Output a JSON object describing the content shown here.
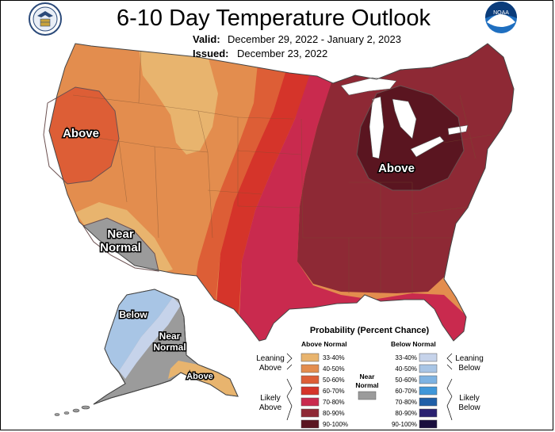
{
  "header": {
    "title": "6-10 Day Temperature Outlook",
    "valid_label": "Valid:",
    "valid_value": "December 29, 2022 - January 2, 2023",
    "issued_label": "Issued:",
    "issued_value": "December 23, 2022"
  },
  "logos": {
    "left": "department-of-commerce-seal",
    "right": "noaa-logo",
    "right_text": "NOAA"
  },
  "map_labels": {
    "west_above": "Above",
    "southwest_near_1": "Near",
    "southwest_near_2": "Normal",
    "east_above": "Above",
    "alaska_below": "Below",
    "alaska_near_1": "Near",
    "alaska_near_2": "Normal",
    "alaska_above": "Above"
  },
  "legend": {
    "title": "Probability (Percent Chance)",
    "above_header": "Above Normal",
    "below_header": "Below Normal",
    "near_label_1": "Near",
    "near_label_2": "Normal",
    "leaning_above_1": "Leaning",
    "leaning_above_2": "Above",
    "likely_above_1": "Likely",
    "likely_above_2": "Above",
    "leaning_below_1": "Leaning",
    "leaning_below_2": "Below",
    "likely_below_1": "Likely",
    "likely_below_2": "Below",
    "above": [
      {
        "range": "33-40%",
        "color": "#e8b46e"
      },
      {
        "range": "40-50%",
        "color": "#e38d4e"
      },
      {
        "range": "50-60%",
        "color": "#dd5e36"
      },
      {
        "range": "60-70%",
        "color": "#d5342a"
      },
      {
        "range": "70-80%",
        "color": "#c92a4e"
      },
      {
        "range": "80-90%",
        "color": "#8e2935"
      },
      {
        "range": "90-100%",
        "color": "#5a1520"
      }
    ],
    "below": [
      {
        "range": "33-40%",
        "color": "#c6d3ea"
      },
      {
        "range": "40-50%",
        "color": "#a8c5e5"
      },
      {
        "range": "50-60%",
        "color": "#7eb3e2"
      },
      {
        "range": "60-70%",
        "color": "#3f97d9"
      },
      {
        "range": "70-80%",
        "color": "#1f5fa7"
      },
      {
        "range": "80-90%",
        "color": "#2a2170"
      },
      {
        "range": "90-100%",
        "color": "#1a0f3e"
      }
    ],
    "near_color": "#9b9b9b"
  }
}
